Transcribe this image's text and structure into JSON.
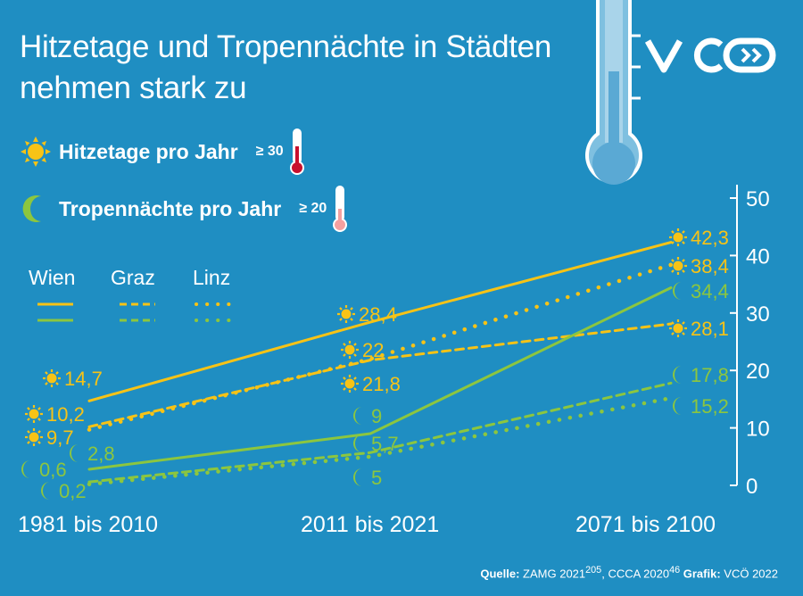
{
  "title": "Hitzetage und Tropennächte in Städten nehmen stark zu",
  "logo": "VCÖ",
  "legend": {
    "heat_label": "Hitzetage pro Jahr",
    "heat_threshold": "≥ 30",
    "night_label": "Tropennächte pro Jahr",
    "night_threshold": "≥ 20"
  },
  "cities": [
    "Wien",
    "Graz",
    "Linz"
  ],
  "colors": {
    "background": "#1f8ec2",
    "heat": "#f7c316",
    "night": "#8cc63f",
    "text": "#ffffff"
  },
  "source": {
    "prefix": "Quelle:",
    "text1": "ZAMG 2021",
    "sup1": "205",
    "text2": ", CCCA 2020",
    "sup2": "46",
    "grafik_prefix": "Grafik:",
    "grafik_text": "VCÖ 2022"
  },
  "chart_data": {
    "type": "line",
    "categories": [
      "1981 bis 2010",
      "2011 bis 2021",
      "2071 bis 2100"
    ],
    "ylim": [
      0,
      50
    ],
    "yticks": [
      "0",
      "10",
      "20",
      "30",
      "40",
      "50"
    ],
    "series": [
      {
        "name": "Wien",
        "kind": "Hitzetage",
        "style": "solid",
        "values": [
          14.7,
          28.4,
          42.3
        ],
        "labels": [
          "14,7",
          "28,4",
          "42,3"
        ]
      },
      {
        "name": "Graz",
        "kind": "Hitzetage",
        "style": "dashed",
        "values": [
          10.2,
          21.8,
          28.1
        ],
        "labels": [
          "10,2",
          "21,8",
          "28,1"
        ]
      },
      {
        "name": "Linz",
        "kind": "Hitzetage",
        "style": "dotted",
        "values": [
          9.7,
          22,
          38.4
        ],
        "labels": [
          "9,7",
          "22",
          "38,4"
        ]
      },
      {
        "name": "Wien",
        "kind": "Tropennächte",
        "style": "solid",
        "values": [
          2.8,
          9,
          34.4
        ],
        "labels": [
          "2,8",
          "9",
          "34,4"
        ]
      },
      {
        "name": "Graz",
        "kind": "Tropennächte",
        "style": "dashed",
        "values": [
          0.6,
          5.7,
          17.8
        ],
        "labels": [
          "0,6",
          "5,7",
          "17,8"
        ]
      },
      {
        "name": "Linz",
        "kind": "Tropennächte",
        "style": "dotted",
        "values": [
          0.2,
          5,
          15.2
        ],
        "labels": [
          "0,2",
          "5",
          "15,2"
        ]
      }
    ]
  }
}
